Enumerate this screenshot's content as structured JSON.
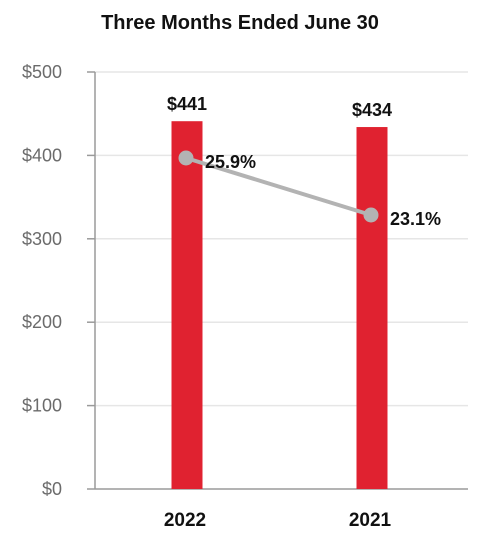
{
  "chart_data": {
    "type": "bar",
    "title": "Three Months Ended June 30",
    "categories": [
      "2022",
      "2021"
    ],
    "ylim": [
      0,
      500
    ],
    "yticks": [
      0,
      100,
      200,
      300,
      400,
      500
    ],
    "ytick_labels": [
      "$0",
      "$100",
      "$200",
      "$300",
      "$400",
      "$500"
    ],
    "grid": true,
    "series": [
      {
        "type": "bar",
        "values": [
          441,
          434
        ],
        "value_labels": [
          "$441",
          "$434"
        ],
        "color": "#e02230"
      },
      {
        "type": "line",
        "values": [
          25.9,
          23.1
        ],
        "value_labels": [
          "25.9%",
          "23.1%"
        ],
        "color": "#b3b3b3"
      }
    ]
  }
}
